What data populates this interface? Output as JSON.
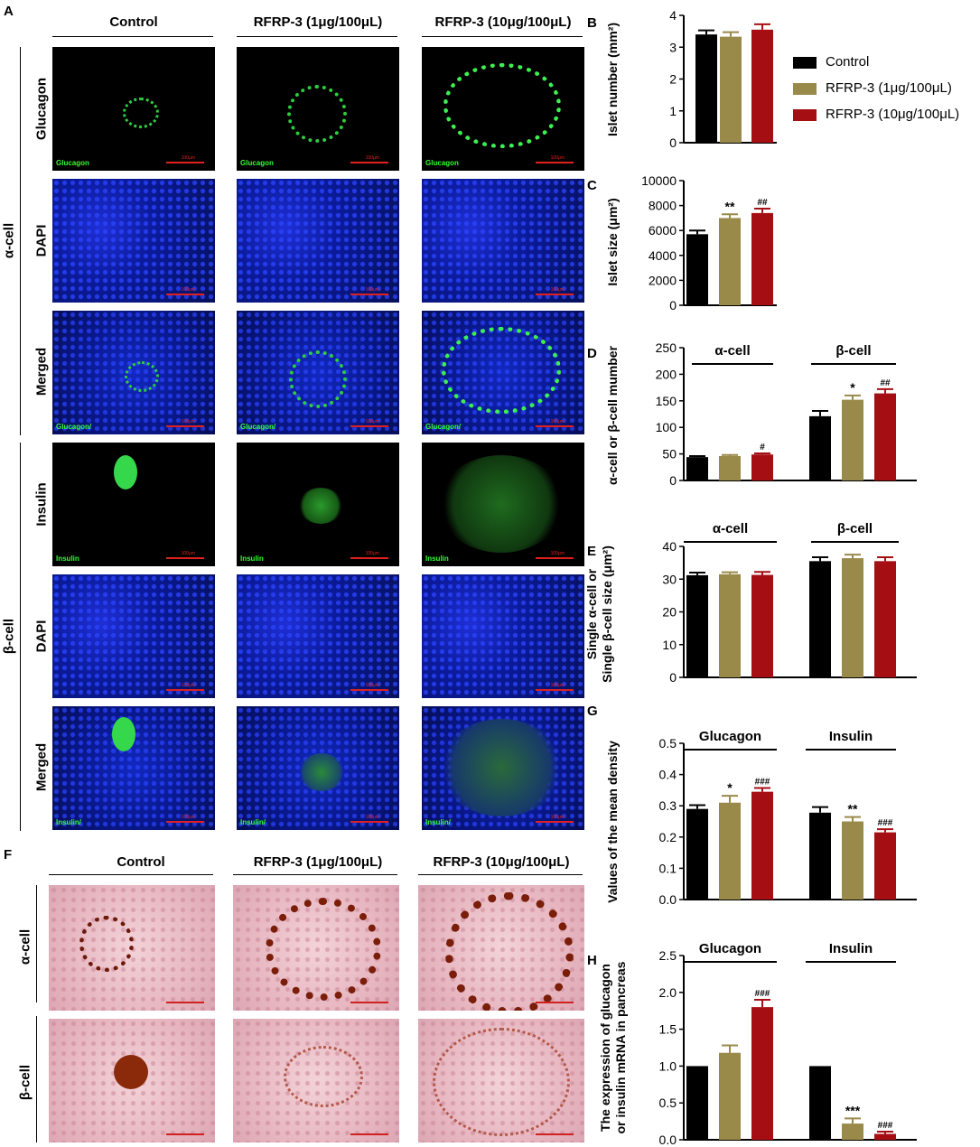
{
  "panel_labels": {
    "A": "A",
    "B": "B",
    "C": "C",
    "D": "D",
    "E": "E",
    "F": "F",
    "G": "G",
    "H": "H"
  },
  "column_headers": [
    "Control",
    "RFRP-3 (1μg/100μL)",
    "RFRP-3 (10μg/100μL)"
  ],
  "row_groups": {
    "alpha": "α-cell",
    "beta": "β-cell"
  },
  "row_labels": [
    "Glucagon",
    "DAPI",
    "Merged",
    "Insulin",
    "DAPI",
    "Merged"
  ],
  "panel_captions": {
    "glucagon": "Glucagon",
    "insulin": "Insulin",
    "merged_glucagon": "Glucagon/",
    "merged_insulin": "Insulin/",
    "dapi": "DAPI",
    "scale": "100μm"
  },
  "ihc_row_labels": [
    "α-cell",
    "β-cell"
  ],
  "legend": [
    {
      "label": "Control",
      "color": "#000000"
    },
    {
      "label": "RFRP-3 (1μg/100μL)",
      "color": "#9a8a4a"
    },
    {
      "label": "RFRP-3 (10μg/100μL)",
      "color": "#a50f14"
    }
  ],
  "chart_data": [
    {
      "id": "B",
      "type": "bar",
      "ylabel": "Islet number (mm²)",
      "ylim": [
        0,
        4
      ],
      "yticks": [
        0,
        1,
        2,
        3,
        4
      ],
      "groups": [
        {
          "name": "",
          "values": [
            3.4,
            3.33,
            3.55
          ],
          "errors": [
            0.13,
            0.14,
            0.17
          ],
          "marks": [
            "",
            "",
            ""
          ]
        }
      ]
    },
    {
      "id": "C",
      "type": "bar",
      "ylabel": "Islet size (μm²)",
      "ylim": [
        0,
        10000
      ],
      "yticks": [
        0,
        2000,
        4000,
        6000,
        8000,
        10000
      ],
      "groups": [
        {
          "name": "",
          "values": [
            5700,
            7000,
            7400
          ],
          "errors": [
            300,
            300,
            350
          ],
          "marks": [
            "",
            "**",
            "##"
          ]
        }
      ]
    },
    {
      "id": "D",
      "type": "bar",
      "ylabel": "α-cell or β-cell mumber",
      "ylim": [
        0,
        250
      ],
      "yticks": [
        0,
        50,
        100,
        150,
        200,
        250
      ],
      "groups": [
        {
          "name": "α-cell",
          "values": [
            44,
            46,
            49
          ],
          "errors": [
            2,
            2,
            2
          ],
          "marks": [
            "",
            "",
            "#"
          ]
        },
        {
          "name": "β-cell",
          "values": [
            121,
            152,
            164
          ],
          "errors": [
            10,
            8,
            8
          ],
          "marks": [
            "",
            "*",
            "##"
          ]
        }
      ]
    },
    {
      "id": "E",
      "type": "bar",
      "ylabel": "Single α-cell or Single β-cell size (μm²)",
      "ylim": [
        0,
        40
      ],
      "yticks": [
        0,
        10,
        20,
        30,
        40
      ],
      "groups": [
        {
          "name": "α-cell",
          "values": [
            31.2,
            31.5,
            31.3
          ],
          "errors": [
            0.8,
            0.6,
            0.9
          ],
          "marks": [
            "",
            "",
            ""
          ]
        },
        {
          "name": "β-cell",
          "values": [
            35.5,
            36.4,
            35.5
          ],
          "errors": [
            1.2,
            1.1,
            1.2
          ],
          "marks": [
            "",
            "",
            ""
          ]
        }
      ]
    },
    {
      "id": "G",
      "type": "bar",
      "ylabel": "Values of the mean density",
      "ylim": [
        0,
        0.5
      ],
      "yticks": [
        "0.0",
        "0.1",
        "0.2",
        "0.3",
        "0.4",
        "0.5"
      ],
      "groups": [
        {
          "name": "Glucagon",
          "values": [
            0.29,
            0.31,
            0.345
          ],
          "errors": [
            0.012,
            0.022,
            0.012
          ],
          "marks": [
            "",
            "*",
            "###"
          ]
        },
        {
          "name": "Insulin",
          "values": [
            0.278,
            0.25,
            0.215
          ],
          "errors": [
            0.018,
            0.014,
            0.01
          ],
          "marks": [
            "",
            "**",
            "###"
          ]
        }
      ]
    },
    {
      "id": "H",
      "type": "bar",
      "ylabel": "The expression of glucagon or insulin mRNA in pancreas",
      "ylim": [
        0,
        2.5
      ],
      "yticks": [
        "0.0",
        "0.5",
        "1.0",
        "1.5",
        "2.0",
        "2.5"
      ],
      "groups": [
        {
          "name": "Glucagon",
          "values": [
            1.0,
            1.18,
            1.8
          ],
          "errors": [
            0,
            0.1,
            0.1
          ],
          "marks": [
            "",
            "",
            "###"
          ]
        },
        {
          "name": "Insulin",
          "values": [
            1.0,
            0.22,
            0.08
          ],
          "errors": [
            0,
            0.07,
            0.03
          ],
          "marks": [
            "",
            "***",
            "###"
          ]
        }
      ]
    }
  ]
}
